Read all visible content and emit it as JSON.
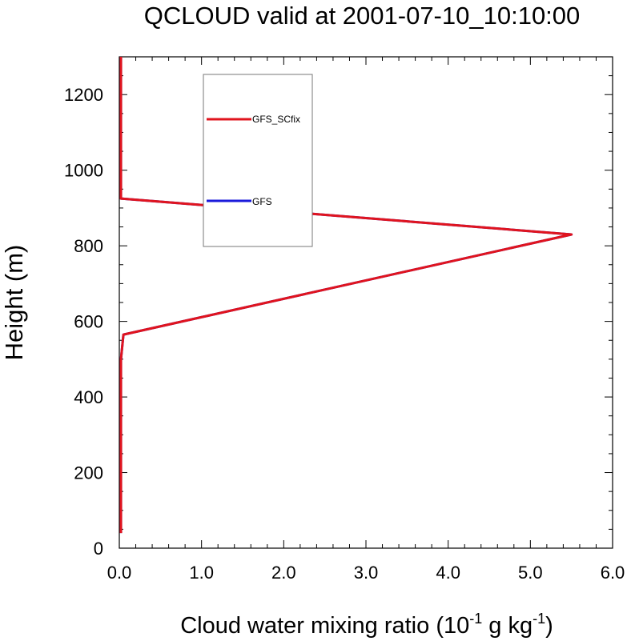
{
  "chart_data": {
    "type": "line",
    "title": "QCLOUD valid at 2001-07-10_10:10:00",
    "xlabel": {
      "prefix": "Cloud water mixing ratio (10",
      "exp1": "-1",
      "middle": " g kg",
      "exp2": "-1",
      "suffix": ")"
    },
    "ylabel": "Height (m)",
    "xlim": [
      0,
      6
    ],
    "ylim": [
      0,
      1300
    ],
    "x_ticks": [
      0,
      1,
      2,
      3,
      4,
      5,
      6
    ],
    "x_tick_labels": [
      "0.0",
      "1.0",
      "2.0",
      "3.0",
      "4.0",
      "5.0",
      "6.0"
    ],
    "y_ticks": [
      0,
      200,
      400,
      600,
      800,
      1000,
      1200
    ],
    "y_tick_labels": [
      "0",
      "200",
      "400",
      "600",
      "800",
      "1000",
      "1200"
    ],
    "grid": false,
    "legend_position": "top-left-inside",
    "series": [
      {
        "name": "GFS_SCfix",
        "color": "#e0141e",
        "x": [
          0.02,
          0.02,
          0.02,
          0.05,
          5.5,
          0.02,
          0.02
        ],
        "y": [
          40,
          470,
          500,
          565,
          830,
          925,
          1300
        ]
      },
      {
        "name": "GFS",
        "color": "#1a1adb",
        "x": [
          0.02,
          0.02,
          0.02,
          0.05,
          5.5,
          0.02,
          0.02
        ],
        "y": [
          40,
          470,
          500,
          565,
          830,
          925,
          1300
        ]
      }
    ]
  }
}
